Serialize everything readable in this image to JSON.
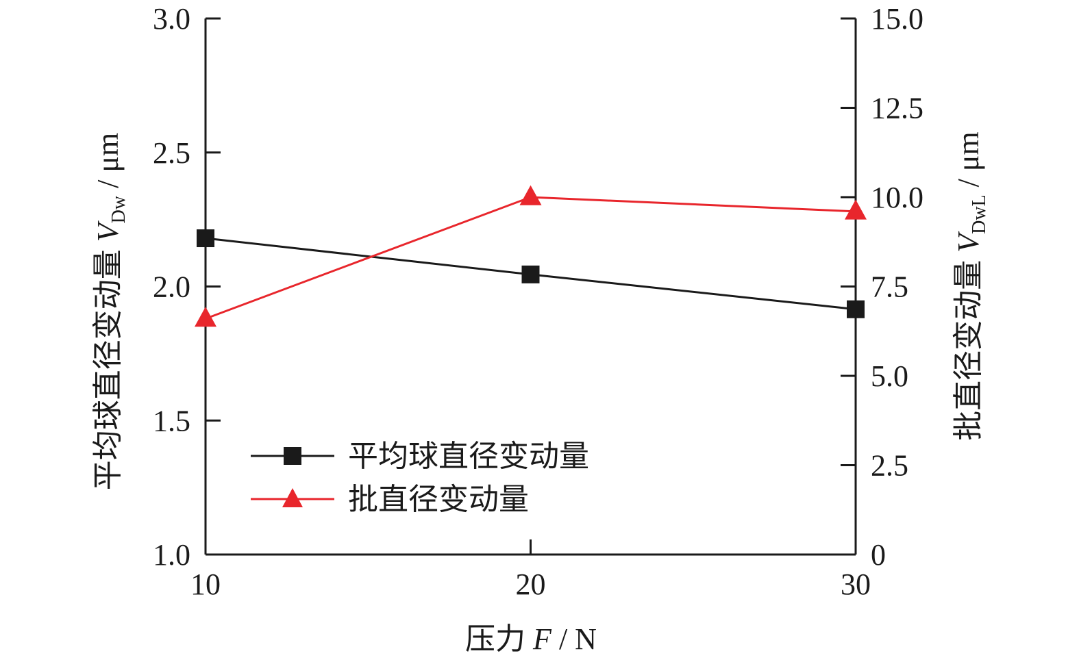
{
  "chart_data": {
    "type": "line",
    "x": [
      10,
      20,
      30
    ],
    "x_ticks": [
      "10",
      "20",
      "30"
    ],
    "xlim": [
      10,
      30
    ],
    "xlabel": {
      "prefix": "压力 ",
      "symbol": "F",
      "suffix": " / N"
    },
    "left_axis": {
      "ylim": [
        1.0,
        3.0
      ],
      "ticks": [
        1.0,
        1.5,
        2.0,
        2.5,
        3.0
      ],
      "tick_labels": [
        "1.0",
        "1.5",
        "2.0",
        "2.5",
        "3.0"
      ],
      "ylabel": {
        "prefix": "平均球直径变动量 ",
        "symbol": "V",
        "subscript": "Dw",
        "suffix": " / μm"
      }
    },
    "right_axis": {
      "ylim": [
        0,
        15.0
      ],
      "ticks": [
        0,
        2.5,
        5.0,
        7.5,
        10.0,
        12.5,
        15.0
      ],
      "tick_labels": [
        "0",
        "2.5",
        "5.0",
        "7.5",
        "10.0",
        "12.5",
        "15.0"
      ],
      "ylabel": {
        "prefix": "批直径变动量 ",
        "symbol": "V",
        "subscript": "DwL",
        "suffix": " / μm"
      }
    },
    "series": [
      {
        "name": "平均球直径变动量",
        "axis": "left",
        "marker": "square",
        "color": "#1a1a1a",
        "values": [
          2.18,
          2.045,
          1.915
        ]
      },
      {
        "name": "批直径变动量",
        "axis": "right",
        "marker": "triangle",
        "color": "#e8262c",
        "values": [
          6.6,
          10.0,
          9.6
        ]
      }
    ],
    "legend_position": "bottom-left",
    "grid": false
  }
}
